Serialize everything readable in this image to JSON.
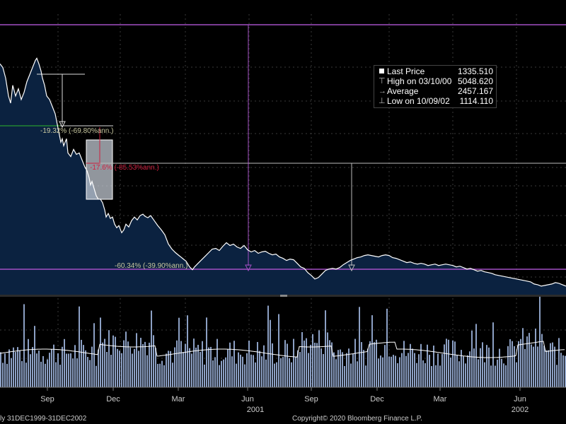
{
  "legend": {
    "last_price_label": "Last Price",
    "last_price_value": "1335.510",
    "high_label": "High on 03/10/00",
    "high_value": "5048.620",
    "average_label": "Average",
    "average_value": "2457.167",
    "low_label": "Low on 10/09/02",
    "low_value": "1114.110"
  },
  "annotations": {
    "first_drop": "-19.32% (-69.80%ann.)",
    "second_drop": "-17.6% (-85.53%ann.)",
    "total_drop": "-60.34% (-39.90%ann.)"
  },
  "footer": {
    "range": "ly 31DEC1999-31DEC2002",
    "copyright": "Copyright© 2020 Bloomberg Finance L.P."
  },
  "colors": {
    "background": "#000000",
    "price_line": "#ffffff",
    "price_area": "#0b2240",
    "volume_bar": "#8ca0c4",
    "moving_average": "#ffffff",
    "reference_line": "#a34fc4",
    "first_drop_annotation": "#c8c8a0",
    "second_drop_annotation": "#d02040",
    "highlight_box": "#cfd6df"
  },
  "chart_data": {
    "type": "area",
    "title": "",
    "series": [
      {
        "values": [
          [
            0,
            4150
          ],
          [
            4,
            4100
          ],
          [
            8,
            3950
          ],
          [
            12,
            3700
          ],
          [
            15,
            3600
          ],
          [
            18,
            3850
          ],
          [
            22,
            3700
          ],
          [
            26,
            3800
          ],
          [
            30,
            3650
          ],
          [
            34,
            3750
          ],
          [
            38,
            3900
          ],
          [
            42,
            4000
          ],
          [
            46,
            4100
          ],
          [
            50,
            4200
          ],
          [
            52,
            4230
          ],
          [
            55,
            4150
          ],
          [
            58,
            4050
          ],
          [
            60,
            3950
          ],
          [
            63,
            3850
          ],
          [
            66,
            3700
          ],
          [
            70,
            3650
          ],
          [
            74,
            3550
          ],
          [
            78,
            3450
          ],
          [
            81,
            3300
          ],
          [
            84,
            3150
          ],
          [
            86,
            3050
          ],
          [
            88,
            3100
          ],
          [
            90,
            3000
          ],
          [
            92,
            3050
          ],
          [
            94,
            3100
          ],
          [
            96,
            2900
          ],
          [
            100,
            2850
          ],
          [
            104,
            2950
          ],
          [
            108,
            2880
          ],
          [
            112,
            2900
          ],
          [
            116,
            2800
          ],
          [
            120,
            2700
          ],
          [
            123,
            2650
          ],
          [
            126,
            2550
          ],
          [
            128,
            2450
          ],
          [
            130,
            2500
          ],
          [
            133,
            2400
          ],
          [
            136,
            2300
          ],
          [
            139,
            2250
          ],
          [
            142,
            2250
          ],
          [
            145,
            2200
          ],
          [
            148,
            2100
          ],
          [
            150,
            2000
          ],
          [
            153,
            2050
          ],
          [
            156,
            1980
          ],
          [
            159,
            2000
          ],
          [
            162,
            1900
          ],
          [
            165,
            1850
          ],
          [
            168,
            1880
          ],
          [
            172,
            1780
          ],
          [
            175,
            1820
          ],
          [
            178,
            1900
          ],
          [
            182,
            1860
          ],
          [
            186,
            1950
          ],
          [
            190,
            2000
          ],
          [
            194,
            1960
          ],
          [
            198,
            2020
          ],
          [
            202,
            2040
          ],
          [
            205,
            2010
          ],
          [
            209,
            1990
          ],
          [
            213,
            2020
          ],
          [
            218,
            1950
          ],
          [
            223,
            1880
          ],
          [
            228,
            1820
          ],
          [
            233,
            1750
          ],
          [
            238,
            1620
          ],
          [
            243,
            1550
          ],
          [
            248,
            1500
          ],
          [
            253,
            1460
          ],
          [
            258,
            1420
          ],
          [
            263,
            1380
          ],
          [
            268,
            1300
          ],
          [
            272,
            1260
          ],
          [
            275,
            1300
          ],
          [
            280,
            1350
          ],
          [
            285,
            1400
          ],
          [
            290,
            1450
          ],
          [
            295,
            1500
          ],
          [
            300,
            1550
          ],
          [
            305,
            1560
          ],
          [
            310,
            1530
          ],
          [
            315,
            1590
          ],
          [
            320,
            1640
          ],
          [
            325,
            1600
          ],
          [
            330,
            1620
          ],
          [
            335,
            1580
          ],
          [
            340,
            1560
          ],
          [
            345,
            1600
          ],
          [
            350,
            1540
          ],
          [
            355,
            1510
          ],
          [
            360,
            1530
          ],
          [
            365,
            1490
          ],
          [
            370,
            1510
          ],
          [
            375,
            1520
          ],
          [
            380,
            1490
          ],
          [
            385,
            1470
          ],
          [
            390,
            1480
          ],
          [
            395,
            1440
          ],
          [
            400,
            1420
          ],
          [
            405,
            1390
          ],
          [
            410,
            1410
          ],
          [
            415,
            1400
          ],
          [
            420,
            1350
          ],
          [
            425,
            1300
          ],
          [
            430,
            1280
          ],
          [
            435,
            1220
          ],
          [
            440,
            1180
          ],
          [
            445,
            1130
          ],
          [
            450,
            1150
          ],
          [
            455,
            1200
          ],
          [
            460,
            1250
          ],
          [
            465,
            1270
          ],
          [
            470,
            1280
          ],
          [
            475,
            1270
          ],
          [
            480,
            1290
          ],
          [
            485,
            1330
          ],
          [
            490,
            1360
          ],
          [
            495,
            1390
          ],
          [
            500,
            1410
          ],
          [
            505,
            1430
          ],
          [
            510,
            1440
          ],
          [
            515,
            1460
          ],
          [
            520,
            1470
          ],
          [
            525,
            1460
          ],
          [
            530,
            1450
          ],
          [
            535,
            1440
          ],
          [
            540,
            1460
          ],
          [
            545,
            1470
          ],
          [
            550,
            1460
          ],
          [
            555,
            1430
          ],
          [
            560,
            1420
          ],
          [
            565,
            1400
          ],
          [
            570,
            1380
          ],
          [
            575,
            1360
          ],
          [
            580,
            1370
          ],
          [
            585,
            1350
          ],
          [
            590,
            1340
          ],
          [
            595,
            1350
          ],
          [
            600,
            1340
          ],
          [
            605,
            1320
          ],
          [
            610,
            1330
          ],
          [
            615,
            1340
          ],
          [
            620,
            1320
          ],
          [
            625,
            1330
          ],
          [
            630,
            1340
          ],
          [
            635,
            1330
          ],
          [
            640,
            1320
          ],
          [
            645,
            1300
          ],
          [
            650,
            1310
          ],
          [
            655,
            1290
          ],
          [
            660,
            1270
          ],
          [
            665,
            1280
          ],
          [
            670,
            1260
          ],
          [
            675,
            1240
          ],
          [
            680,
            1250
          ],
          [
            685,
            1230
          ],
          [
            690,
            1220
          ],
          [
            695,
            1210
          ],
          [
            700,
            1190
          ],
          [
            705,
            1180
          ],
          [
            710,
            1170
          ],
          [
            715,
            1160
          ],
          [
            720,
            1150
          ],
          [
            725,
            1140
          ],
          [
            730,
            1130
          ],
          [
            735,
            1120
          ],
          [
            740,
            1110
          ],
          [
            745,
            1100
          ],
          [
            750,
            1090
          ],
          [
            755,
            1060
          ],
          [
            760,
            1050
          ],
          [
            765,
            1030
          ],
          [
            770,
            1040
          ],
          [
            775,
            1050
          ],
          [
            780,
            1060
          ],
          [
            785,
            1080
          ],
          [
            790,
            1070
          ],
          [
            795,
            1050
          ],
          [
            800,
            1030
          ]
        ]
      }
    ],
    "x_tick_labels": [
      "Sep",
      "Dec",
      "Mar",
      "Jun",
      "Sep",
      "Dec",
      "Mar",
      "Jun"
    ],
    "x_year_labels": [
      "2001",
      "2002"
    ],
    "volume_note": "lower panel shows daily volume bars with a moving-average line",
    "grid": true
  }
}
